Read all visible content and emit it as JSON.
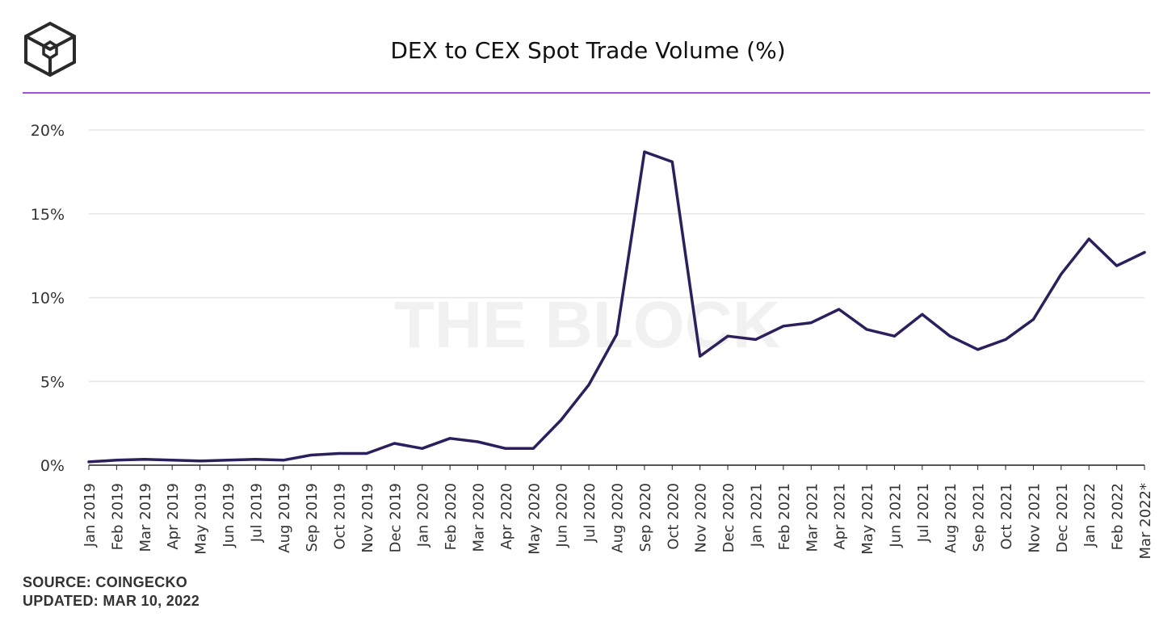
{
  "title": "DEX to CEX Spot Trade Volume (%)",
  "watermark": "THE BLOCK",
  "footer": {
    "source": "SOURCE: COINGECKO",
    "updated": "UPDATED: MAR 10, 2022"
  },
  "colors": {
    "line": "#2b1f5c",
    "accent_rule": "#a64fd8",
    "grid": "#e6e6e6",
    "axis": "#222222"
  },
  "chart_data": {
    "type": "line",
    "title": "DEX to CEX Spot Trade Volume (%)",
    "xlabel": "",
    "ylabel": "",
    "ylim": [
      0,
      20
    ],
    "yticks": [
      0,
      5,
      10,
      15,
      20
    ],
    "ytick_labels": [
      "0%",
      "5%",
      "10%",
      "15%",
      "20%"
    ],
    "grid": true,
    "categories": [
      "Jan 2019",
      "Feb 2019",
      "Mar 2019",
      "Apr 2019",
      "May 2019",
      "Jun 2019",
      "Jul 2019",
      "Aug 2019",
      "Sep 2019",
      "Oct 2019",
      "Nov 2019",
      "Dec 2019",
      "Jan 2020",
      "Feb 2020",
      "Mar 2020",
      "Apr 2020",
      "May 2020",
      "Jun 2020",
      "Jul 2020",
      "Aug 2020",
      "Sep 2020",
      "Oct 2020",
      "Nov 2020",
      "Dec 2020",
      "Jan 2021",
      "Feb 2021",
      "Mar 2021",
      "Apr 2021",
      "May 2021",
      "Jun 2021",
      "Jul 2021",
      "Aug 2021",
      "Sep 2021",
      "Oct 2021",
      "Nov 2021",
      "Dec 2021",
      "Jan 2022",
      "Feb 2022",
      "Mar 2022*"
    ],
    "values": [
      0.2,
      0.3,
      0.35,
      0.3,
      0.25,
      0.3,
      0.35,
      0.3,
      0.6,
      0.7,
      0.7,
      1.3,
      1.0,
      1.6,
      1.4,
      1.0,
      1.0,
      2.7,
      4.8,
      7.8,
      18.7,
      18.1,
      6.5,
      7.7,
      7.5,
      8.3,
      8.5,
      9.3,
      8.1,
      7.7,
      9.0,
      7.7,
      6.9,
      7.5,
      8.7,
      11.4,
      13.5,
      11.9,
      12.7
    ]
  }
}
